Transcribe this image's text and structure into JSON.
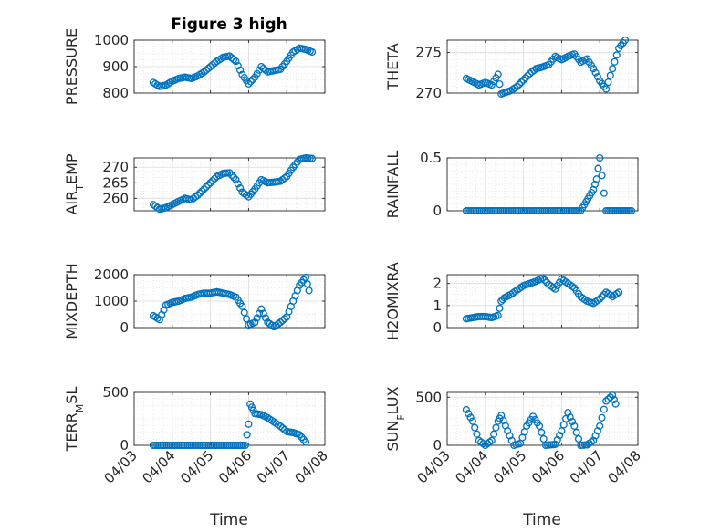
{
  "figure": {
    "title": "Figure 3 high",
    "xlabel": "Time"
  },
  "chart_data": [
    {
      "type": "scatter",
      "ylabel": "PRESSURE",
      "xlim": [
        "04/03",
        "04/08"
      ],
      "ylim": [
        800,
        1000
      ],
      "xticks": [
        "04/03",
        "04/04",
        "04/05",
        "04/06",
        "04/07",
        "04/08"
      ],
      "yticks": [
        800,
        900,
        1000
      ],
      "grid": true,
      "color": "#0072BD",
      "points": [
        [
          "04/03 12:00",
          840
        ],
        [
          "04/03 16:00",
          825
        ],
        [
          "04/03 20:00",
          830
        ],
        [
          "04/04 00:00",
          845
        ],
        [
          "04/04 04:00",
          855
        ],
        [
          "04/04 08:00",
          860
        ],
        [
          "04/04 12:00",
          855
        ],
        [
          "04/04 16:00",
          865
        ],
        [
          "04/04 20:00",
          880
        ],
        [
          "04/05 00:00",
          900
        ],
        [
          "04/05 04:00",
          920
        ],
        [
          "04/05 08:00",
          935
        ],
        [
          "04/05 12:00",
          940
        ],
        [
          "04/05 16:00",
          920
        ],
        [
          "04/05 20:00",
          870
        ],
        [
          "04/06 00:00",
          835
        ],
        [
          "04/06 04:00",
          860
        ],
        [
          "04/06 08:00",
          900
        ],
        [
          "04/06 12:00",
          880
        ],
        [
          "04/06 16:00",
          885
        ],
        [
          "04/06 20:00",
          890
        ],
        [
          "04/07 00:00",
          920
        ],
        [
          "04/07 04:00",
          955
        ],
        [
          "04/07 08:00",
          970
        ],
        [
          "04/07 12:00",
          965
        ],
        [
          "04/07 16:00",
          955
        ]
      ]
    },
    {
      "type": "scatter",
      "ylabel": "THETA",
      "xlim": [
        "04/03",
        "04/08"
      ],
      "ylim": [
        270,
        276.5
      ],
      "xticks": [
        "04/03",
        "04/04",
        "04/05",
        "04/06",
        "04/07",
        "04/08"
      ],
      "yticks": [
        270,
        275
      ],
      "grid": true,
      "color": "#0072BD",
      "points": [
        [
          "04/03 12:00",
          271.8
        ],
        [
          "04/03 16:00",
          271.4
        ],
        [
          "04/03 20:00",
          271
        ],
        [
          "04/04 00:00",
          271.3
        ],
        [
          "04/04 04:00",
          271
        ],
        [
          "04/04 08:00",
          272.3
        ],
        [
          "04/04 10:00",
          269.9
        ],
        [
          "04/04 16:00",
          270.3
        ],
        [
          "04/04 20:00",
          270.8
        ],
        [
          "04/05 00:00",
          271.6
        ],
        [
          "04/05 04:00",
          272.4
        ],
        [
          "04/05 08:00",
          273
        ],
        [
          "04/05 12:00",
          273.2
        ],
        [
          "04/05 16:00",
          273.5
        ],
        [
          "04/05 20:00",
          274.5
        ],
        [
          "04/06 00:00",
          274.1
        ],
        [
          "04/06 04:00",
          274.5
        ],
        [
          "04/06 08:00",
          274.8
        ],
        [
          "04/06 12:00",
          273.8
        ],
        [
          "04/06 16:00",
          274.2
        ],
        [
          "04/06 20:00",
          273
        ],
        [
          "04/07 00:00",
          271.5
        ],
        [
          "04/07 04:00",
          270.5
        ],
        [
          "04/07 08:00",
          273
        ],
        [
          "04/07 12:00",
          275.5
        ],
        [
          "04/07 16:00",
          276.5
        ]
      ]
    },
    {
      "type": "scatter",
      "ylabel": "AIR_TEMP",
      "xlim": [
        "04/03",
        "04/08"
      ],
      "ylim": [
        256,
        273
      ],
      "xticks": [
        "04/03",
        "04/04",
        "04/05",
        "04/06",
        "04/07",
        "04/08"
      ],
      "yticks": [
        260,
        265,
        270
      ],
      "grid": true,
      "color": "#0072BD",
      "points": [
        [
          "04/03 12:00",
          258
        ],
        [
          "04/03 16:00",
          256.5
        ],
        [
          "04/03 20:00",
          257
        ],
        [
          "04/04 00:00",
          258
        ],
        [
          "04/04 04:00",
          259
        ],
        [
          "04/04 08:00",
          260
        ],
        [
          "04/04 12:00",
          259.5
        ],
        [
          "04/04 16:00",
          261
        ],
        [
          "04/04 20:00",
          263
        ],
        [
          "04/05 00:00",
          265
        ],
        [
          "04/05 04:00",
          267
        ],
        [
          "04/05 08:00",
          268
        ],
        [
          "04/05 12:00",
          268.2
        ],
        [
          "04/05 16:00",
          266
        ],
        [
          "04/05 20:00",
          262
        ],
        [
          "04/06 00:00",
          260.5
        ],
        [
          "04/06 04:00",
          263
        ],
        [
          "04/06 08:00",
          266
        ],
        [
          "04/06 12:00",
          265
        ],
        [
          "04/06 16:00",
          265.2
        ],
        [
          "04/06 20:00",
          265.5
        ],
        [
          "04/07 00:00",
          267
        ],
        [
          "04/07 04:00",
          270
        ],
        [
          "04/07 08:00",
          272.5
        ],
        [
          "04/07 12:00",
          273
        ],
        [
          "04/07 16:00",
          272.8
        ]
      ]
    },
    {
      "type": "scatter",
      "ylabel": "RAINFALL",
      "xlim": [
        "04/03",
        "04/08"
      ],
      "ylim": [
        0,
        0.5
      ],
      "xticks": [
        "04/03",
        "04/04",
        "04/05",
        "04/06",
        "04/07",
        "04/08"
      ],
      "yticks": [
        0,
        0.5
      ],
      "grid": true,
      "color": "#0072BD",
      "points": [
        [
          "04/03 12:00",
          0
        ],
        [
          "04/04 00:00",
          0
        ],
        [
          "04/04 12:00",
          0
        ],
        [
          "04/05 00:00",
          0
        ],
        [
          "04/05 12:00",
          0
        ],
        [
          "04/06 00:00",
          0
        ],
        [
          "04/06 12:00",
          0
        ],
        [
          "04/06 20:00",
          0.2
        ],
        [
          "04/06 22:00",
          0.3
        ],
        [
          "04/07 00:00",
          0.5
        ],
        [
          "04/07 04:00",
          0
        ],
        [
          "04/07 12:00",
          0
        ],
        [
          "04/07 20:00",
          0
        ]
      ]
    },
    {
      "type": "scatter",
      "ylabel": "MIXDEPTH",
      "xlim": [
        "04/03",
        "04/08"
      ],
      "ylim": [
        0,
        2000
      ],
      "xticks": [
        "04/03",
        "04/04",
        "04/05",
        "04/06",
        "04/07",
        "04/08"
      ],
      "yticks": [
        0,
        1000,
        2000
      ],
      "grid": true,
      "color": "#0072BD",
      "points": [
        [
          "04/03 12:00",
          450
        ],
        [
          "04/03 16:00",
          300
        ],
        [
          "04/03 20:00",
          850
        ],
        [
          "04/04 00:00",
          950
        ],
        [
          "04/04 04:00",
          1000
        ],
        [
          "04/04 08:00",
          1100
        ],
        [
          "04/04 12:00",
          1150
        ],
        [
          "04/04 16:00",
          1250
        ],
        [
          "04/04 20:00",
          1300
        ],
        [
          "04/05 00:00",
          1300
        ],
        [
          "04/05 04:00",
          1350
        ],
        [
          "04/05 08:00",
          1300
        ],
        [
          "04/05 12:00",
          1250
        ],
        [
          "04/05 16:00",
          1150
        ],
        [
          "04/05 20:00",
          800
        ],
        [
          "04/06 00:00",
          100
        ],
        [
          "04/06 04:00",
          200
        ],
        [
          "04/06 08:00",
          700
        ],
        [
          "04/06 12:00",
          200
        ],
        [
          "04/06 16:00",
          30
        ],
        [
          "04/06 20:00",
          200
        ],
        [
          "04/07 00:00",
          400
        ],
        [
          "04/07 04:00",
          1000
        ],
        [
          "04/07 08:00",
          1600
        ],
        [
          "04/07 12:00",
          1900
        ],
        [
          "04/07 14:00",
          1400
        ]
      ]
    },
    {
      "type": "scatter",
      "ylabel": "H2OMIXRA",
      "xlim": [
        "04/03",
        "04/08"
      ],
      "ylim": [
        0,
        2.4
      ],
      "xticks": [
        "04/03",
        "04/04",
        "04/05",
        "04/06",
        "04/07",
        "04/08"
      ],
      "yticks": [
        0,
        1,
        2
      ],
      "grid": true,
      "color": "#0072BD",
      "points": [
        [
          "04/03 12:00",
          0.4
        ],
        [
          "04/03 16:00",
          0.45
        ],
        [
          "04/03 20:00",
          0.5
        ],
        [
          "04/04 00:00",
          0.5
        ],
        [
          "04/04 04:00",
          0.45
        ],
        [
          "04/04 08:00",
          0.55
        ],
        [
          "04/04 10:00",
          1.2
        ],
        [
          "04/04 12:00",
          1.35
        ],
        [
          "04/04 16:00",
          1.5
        ],
        [
          "04/04 20:00",
          1.7
        ],
        [
          "04/05 00:00",
          1.9
        ],
        [
          "04/05 04:00",
          2
        ],
        [
          "04/05 08:00",
          2.1
        ],
        [
          "04/05 12:00",
          2.25
        ],
        [
          "04/05 16:00",
          1.95
        ],
        [
          "04/05 20:00",
          1.75
        ],
        [
          "04/06 00:00",
          2.2
        ],
        [
          "04/06 04:00",
          2
        ],
        [
          "04/06 08:00",
          1.8
        ],
        [
          "04/06 12:00",
          1.4
        ],
        [
          "04/06 16:00",
          1.2
        ],
        [
          "04/06 20:00",
          1.1
        ],
        [
          "04/07 00:00",
          1.3
        ],
        [
          "04/07 04:00",
          1.6
        ],
        [
          "04/07 08:00",
          1.4
        ],
        [
          "04/07 12:00",
          1.6
        ]
      ]
    },
    {
      "type": "scatter",
      "ylabel": "TERR_MSL",
      "xlim": [
        "04/03",
        "04/08"
      ],
      "ylim": [
        0,
        500
      ],
      "xticks": [
        "04/03",
        "04/04",
        "04/05",
        "04/06",
        "04/07",
        "04/08"
      ],
      "yticks": [
        0,
        500
      ],
      "grid": true,
      "color": "#0072BD",
      "points": [
        [
          "04/03 12:00",
          0
        ],
        [
          "04/04 00:00",
          0
        ],
        [
          "04/04 12:00",
          0
        ],
        [
          "04/05 00:00",
          0
        ],
        [
          "04/05 12:00",
          0
        ],
        [
          "04/05 22:00",
          0
        ],
        [
          "04/06 00:00",
          200
        ],
        [
          "04/06 01:00",
          390
        ],
        [
          "04/06 04:00",
          300
        ],
        [
          "04/06 08:00",
          290
        ],
        [
          "04/06 12:00",
          260
        ],
        [
          "04/06 16:00",
          220
        ],
        [
          "04/06 20:00",
          180
        ],
        [
          "04/07 00:00",
          130
        ],
        [
          "04/07 04:00",
          120
        ],
        [
          "04/07 08:00",
          100
        ],
        [
          "04/07 12:00",
          30
        ]
      ]
    },
    {
      "type": "scatter",
      "ylabel": "SUN_FLUX",
      "xlim": [
        "04/03",
        "04/08"
      ],
      "ylim": [
        0,
        550
      ],
      "xticks": [
        "04/03",
        "04/04",
        "04/05",
        "04/06",
        "04/07",
        "04/08"
      ],
      "yticks": [
        0,
        500
      ],
      "grid": true,
      "color": "#0072BD",
      "points": [
        [
          "04/03 12:00",
          370
        ],
        [
          "04/03 16:00",
          250
        ],
        [
          "04/03 20:00",
          50
        ],
        [
          "04/04 00:00",
          0
        ],
        [
          "04/04 04:00",
          50
        ],
        [
          "04/04 08:00",
          250
        ],
        [
          "04/04 10:00",
          310
        ],
        [
          "04/04 14:00",
          150
        ],
        [
          "04/04 18:00",
          0
        ],
        [
          "04/04 22:00",
          20
        ],
        [
          "04/05 02:00",
          200
        ],
        [
          "04/05 06:00",
          300
        ],
        [
          "04/05 10:00",
          200
        ],
        [
          "04/05 14:00",
          0
        ],
        [
          "04/05 20:00",
          10
        ],
        [
          "04/06 00:00",
          150
        ],
        [
          "04/06 04:00",
          340
        ],
        [
          "04/06 08:00",
          200
        ],
        [
          "04/06 12:00",
          0
        ],
        [
          "04/06 16:00",
          5
        ],
        [
          "04/06 20:00",
          50
        ],
        [
          "04/07 00:00",
          200
        ],
        [
          "04/07 04:00",
          460
        ],
        [
          "04/07 08:00",
          520
        ],
        [
          "04/07 10:00",
          430
        ]
      ]
    }
  ]
}
